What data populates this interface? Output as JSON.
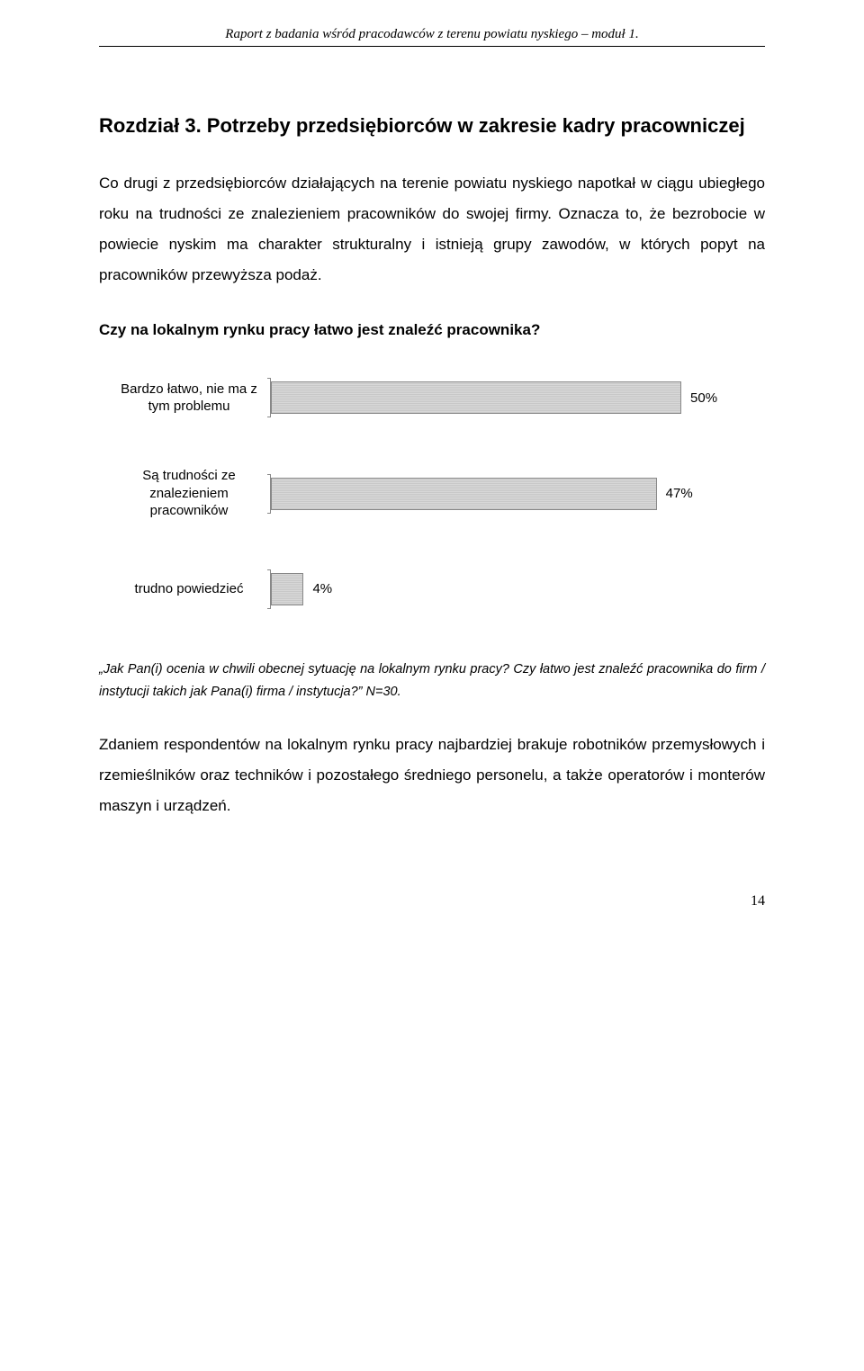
{
  "header": "Raport z badania wśród pracodawców z terenu powiatu nyskiego – moduł 1.",
  "chapter_title": "Rozdział 3. Potrzeby przedsiębiorców w zakresie kadry pracowniczej",
  "para1": "Co drugi z przedsiębiorców działających na terenie powiatu nyskiego napotkał w ciągu ubiegłego roku na trudności ze znalezieniem pracowników do swojej firmy. Oznacza to, że bezrobocie w powiecie nyskim ma charakter strukturalny i istnieją grupy zawodów, w których popyt na pracowników przewyższa podaż.",
  "question": "Czy na lokalnym rynku pracy łatwo jest znaleźć pracownika?",
  "chart": {
    "type": "bar-horizontal",
    "max_pct": 58,
    "bar_color": "#d0d0d0",
    "border_color": "#888888",
    "background_color": "#ffffff",
    "label_fontsize": 15,
    "value_fontsize": 15,
    "items": [
      {
        "label": "Bardzo łatwo, nie ma z tym problemu",
        "value": 50,
        "display": "50%"
      },
      {
        "label": "Są trudności ze znalezieniem pracowników",
        "value": 47,
        "display": "47%"
      },
      {
        "label": "trudno powiedzieć",
        "value": 4,
        "display": "4%"
      }
    ]
  },
  "caption": "„Jak Pan(i) ocenia w chwili obecnej sytuację na lokalnym rynku pracy? Czy łatwo jest znaleźć pracownika do firm / instytucji takich jak Pana(i) firma / instytucja?” N=30.",
  "para2": "Zdaniem respondentów na lokalnym rynku pracy najbardziej brakuje robotników przemysłowych i rzemieślników oraz techników i pozostałego średniego personelu, a także operatorów i monterów maszyn i urządzeń.",
  "page_number": "14"
}
